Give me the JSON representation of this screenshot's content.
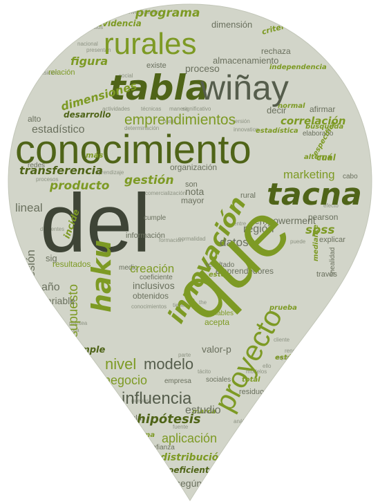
{
  "colors": {
    "background": "#ffffff",
    "shape": "#d2d5c9",
    "shape_edge": "#c2c6b8",
    "green_dark": "#4f6418",
    "green": "#7d9a24",
    "green_light": "#a6c03c",
    "olive": "#5e6e2e",
    "gray_dark": "#555d4c",
    "gray": "#7a8070",
    "gray_light": "#9aa090",
    "white": "#f4f6ee"
  },
  "words": {
    "que": "que",
    "del": "del",
    "conocimiento": "conocimiento",
    "tacna": "tacna",
    "tabla": "tabla",
    "winay": "wiñay",
    "rurales": "rurales",
    "innovacion": "innovación",
    "proyecto": "proyecto",
    "hakuy": "haku",
    "emprendimientos": "emprendimientos",
    "modelo": "modelo",
    "nivel": "nivel",
    "influencia": "influencia",
    "negocio": "negocio",
    "estadistico": "estadístico",
    "correlacion": "correlación",
    "marketing": "marketing",
    "gestion": "gestión",
    "producto": "producto",
    "transferencia": "transferencia",
    "dimensiones": "dimensiones",
    "desarrollo": "desarrollo",
    "figura": "figura",
    "programa": "programa",
    "evidencia": "evidencia",
    "dimension": "dimensión",
    "creacion": "creación",
    "supuesto": "supuesto",
    "datos": "datos",
    "region": "región",
    "empowerment": "empowerment",
    "spss": "spss",
    "lineal": "lineal",
    "regresion": "regresión",
    "variable": "variable",
    "ano": "año",
    "estudio": "estudio",
    "hipotesis": "hipótesis",
    "aplicacion": "aplicación",
    "distribucion": "distribución",
    "coeficientes": "coeficientes",
    "segun": "según",
    "inclusivos": "inclusivos",
    "obtenidos": "obtenidos",
    "simple": "simple",
    "resultados": "resultados",
    "sig": "sig",
    "almacenamiento": "almacenamiento",
    "proceso": "proceso",
    "existe": "existe",
    "relacion": "relación",
    "alto": "alto",
    "redes": "redes",
    "mas": "más",
    "organizacion": "organización",
    "afirmar": "afirmar",
    "decir": "decir",
    "nota": "nota",
    "mayor": "mayor",
    "informacion": "información",
    "incide": "incide",
    "especifica": "específica",
    "estadistica": "estadística",
    "independencia": "independencia",
    "rechaza": "rechaza",
    "criterios": "criterios",
    "elaborado": "elaborado",
    "resultado": "resultado",
    "emprendedores": "emprendedores",
    "traves": "través",
    "explicar": "explicar",
    "pearson": "pearson",
    "acepta": "acepta",
    "variables": "variables",
    "valor_p": "valor-p",
    "empresa": "empresa",
    "sociales": "sociales",
    "residuos": "residuos",
    "nula": "nula",
    "confianza": "confianza",
    "sistema": "sistema",
    "linealidad": "linealidad",
    "cabo": "cabo",
    "cual": "cuál",
    "son": "son",
    "rural": "rural",
    "cumple": "cumple",
    "medio": "medio",
    "coeficiente": "coeficiente",
    "investigacion": "investigación",
    "tecnica": "técnica",
    "interpretacion": "interpretación",
    "social": "social",
    "nacional": "nacional",
    "base": "base",
    "actividades": "actividades",
    "tecnicas": "técnicas",
    "manera": "manera",
    "determinacion": "determinación",
    "aprendizaje": "aprendizaje",
    "procesos": "procesos",
    "comercializacion": "comercialización",
    "entre": "entre",
    "este": "este",
    "tacito": "tácito",
    "marca": "marca",
    "prueba": "prueba",
    "cliente": "cliente",
    "the": "the",
    "adquisicion": "adquisición",
    "servicios": "servicios",
    "presentan": "presentan",
    "mejora": "mejora",
    "conocimientos": "conocimientos",
    "tiene": "tiene",
    "equipo": "equipo",
    "formacion": "formación",
    "normal": "normal",
    "busqueda": "búsqueda",
    "innovation": "innovation",
    "significativo": "significativo",
    "esta": "está",
    "ello": "ello",
    "parte": "parte",
    "nuevas": "nuevas",
    "analisis": "análisis",
    "total": "total",
    "plantea": "plantea",
    "rendimiento": "rendimiento",
    "mediante": "mediante",
    "version": "versión",
    "alterna": "alterna",
    "fuente": "fuente",
    "diferentes": "diferentes",
    "puede": "puede",
    "modelos": "modelos",
    "tabla_small": "tabla",
    "normalidad": "normalidad",
    "efecto": "efecto"
  }
}
